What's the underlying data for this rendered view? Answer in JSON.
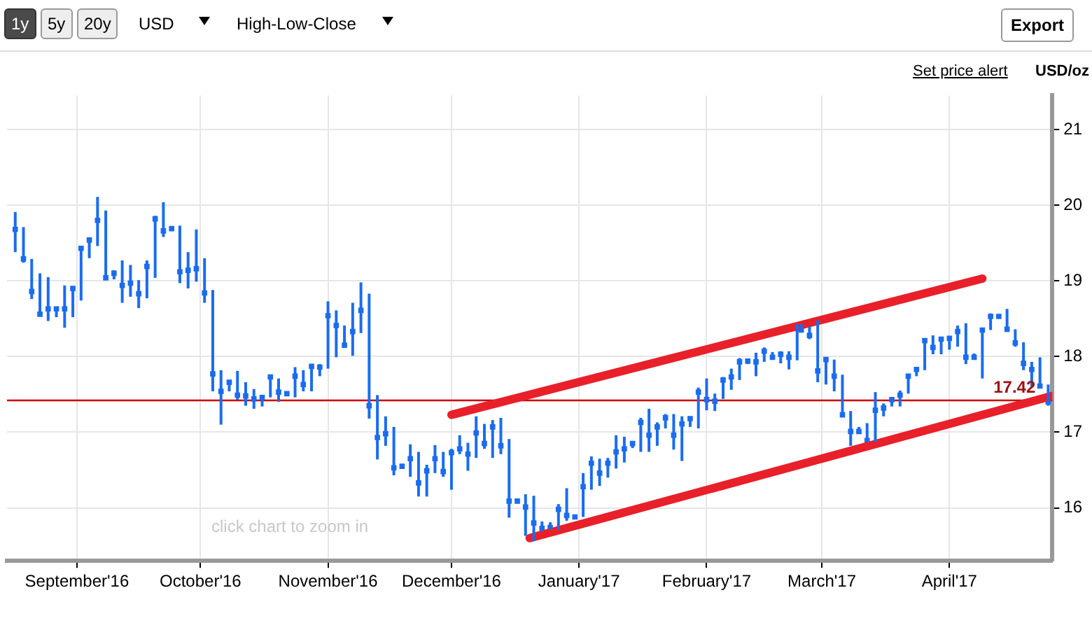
{
  "chart_data": {
    "type": "scatter",
    "ylabel": "USD/oz",
    "annotations": [
      "1y",
      "5y",
      "20y",
      "USD",
      "High-Low-Close",
      "Export",
      "Set price alert",
      "click chart to zoom in"
    ],
    "xlim": [
      "2016-08-15",
      "2017-04-26"
    ],
    "xticks": [
      {
        "value": "2016-09-01",
        "label": "September'16"
      },
      {
        "value": "2016-10-01",
        "label": "October'16"
      },
      {
        "value": "2016-11-01",
        "label": "November'16"
      },
      {
        "value": "2016-12-01",
        "label": "December'16"
      },
      {
        "value": "2017-01-01",
        "label": "January'17"
      },
      {
        "value": "2017-02-01",
        "label": "February'17"
      },
      {
        "value": "2017-03-01",
        "label": "March'17"
      },
      {
        "value": "2017-04-01",
        "label": "April'17"
      }
    ],
    "ylim": [
      15.3,
      21.45
    ],
    "yticks": [
      16,
      17,
      18,
      19,
      20,
      21
    ],
    "grid": true,
    "legend": false,
    "ref_lines": [
      {
        "axis": "y",
        "value": 17.42,
        "label": "17.42",
        "color": "#cc0000"
      }
    ],
    "color": "#1a6cf0",
    "marker": "square",
    "x": [
      "2016-08-17",
      "2016-08-19",
      "2016-08-21",
      "2016-08-23",
      "2016-08-25",
      "2016-08-27",
      "2016-08-29",
      "2016-08-31",
      "2016-09-02",
      "2016-09-04",
      "2016-09-06",
      "2016-09-08",
      "2016-09-10",
      "2016-09-12",
      "2016-09-14",
      "2016-09-16",
      "2016-09-18",
      "2016-09-20",
      "2016-09-22",
      "2016-09-24",
      "2016-09-26",
      "2016-09-28",
      "2016-09-30",
      "2016-10-02",
      "2016-10-04",
      "2016-10-06",
      "2016-10-08",
      "2016-10-10",
      "2016-10-12",
      "2016-10-14",
      "2016-10-16",
      "2016-10-18",
      "2016-10-20",
      "2016-10-22",
      "2016-10-24",
      "2016-10-26",
      "2016-10-28",
      "2016-10-30",
      "2016-11-01",
      "2016-11-03",
      "2016-11-05",
      "2016-11-07",
      "2016-11-09",
      "2016-11-11",
      "2016-11-13",
      "2016-11-15",
      "2016-11-17",
      "2016-11-19",
      "2016-11-21",
      "2016-11-23",
      "2016-11-25",
      "2016-11-27",
      "2016-11-29",
      "2016-12-01",
      "2016-12-03",
      "2016-12-05",
      "2016-12-07",
      "2016-12-09",
      "2016-12-11",
      "2016-12-13",
      "2016-12-15",
      "2016-12-17",
      "2016-12-19",
      "2016-12-21",
      "2016-12-23",
      "2016-12-25",
      "2016-12-27",
      "2016-12-29",
      "2016-12-31",
      "2017-01-02",
      "2017-01-04",
      "2017-01-06",
      "2017-01-08",
      "2017-01-10",
      "2017-01-12",
      "2017-01-14",
      "2017-01-16",
      "2017-01-18",
      "2017-01-20",
      "2017-01-22",
      "2017-01-24",
      "2017-01-26",
      "2017-01-28",
      "2017-01-30",
      "2017-02-01",
      "2017-02-03",
      "2017-02-05",
      "2017-02-07",
      "2017-02-09",
      "2017-02-11",
      "2017-02-13",
      "2017-02-15",
      "2017-02-17",
      "2017-02-19",
      "2017-02-21",
      "2017-02-23",
      "2017-02-24",
      "2017-02-26",
      "2017-02-28",
      "2017-03-02",
      "2017-03-04",
      "2017-03-06",
      "2017-03-08",
      "2017-03-10",
      "2017-03-12",
      "2017-03-14",
      "2017-03-16",
      "2017-03-18",
      "2017-03-20",
      "2017-03-22",
      "2017-03-24",
      "2017-03-26",
      "2017-03-28",
      "2017-03-30",
      "2017-04-01",
      "2017-04-03",
      "2017-04-05",
      "2017-04-07",
      "2017-04-09",
      "2017-04-11",
      "2017-04-13",
      "2017-04-15",
      "2017-04-17",
      "2017-04-19",
      "2017-04-21",
      "2017-04-23",
      "2017-04-25"
    ],
    "values": [
      19.68,
      19.29,
      18.86,
      18.56,
      18.63,
      18.63,
      18.63,
      18.9,
      19.43,
      19.54,
      19.8,
      19.04,
      19.1,
      18.94,
      18.97,
      18.83,
      19.19,
      19.82,
      19.66,
      19.69,
      19.12,
      19.14,
      19.16,
      18.84,
      17.77,
      17.54,
      17.66,
      17.49,
      17.48,
      17.44,
      17.46,
      17.73,
      17.53,
      17.51,
      17.74,
      17.63,
      17.87,
      17.86,
      18.54,
      18.41,
      18.15,
      18.33,
      18.61,
      17.35,
      16.93,
      16.98,
      16.53,
      16.55,
      16.65,
      16.33,
      16.49,
      16.65,
      16.48,
      16.73,
      16.78,
      16.71,
      16.99,
      16.85,
      17.07,
      16.82,
      16.09,
      16.09,
      16.01,
      15.8,
      15.73,
      15.74,
      15.98,
      15.9,
      15.88,
      16.28,
      16.59,
      16.46,
      16.59,
      16.74,
      16.78,
      16.85,
      17.13,
      16.96,
      17.07,
      17.19,
      16.96,
      17.11,
      17.18,
      17.53,
      17.43,
      17.41,
      17.69,
      17.73,
      17.93,
      17.94,
      17.93,
      18.07,
      17.99,
      18.03,
      17.99,
      18.37,
      18.35,
      18.28,
      17.81,
      17.96,
      17.74,
      17.23,
      17.01,
      17.01,
      16.89,
      17.29,
      17.32,
      17.43,
      17.49,
      17.74,
      17.83,
      18.21,
      18.12,
      18.23,
      18.24,
      18.33,
      17.99,
      17.99,
      18.35,
      18.53,
      18.53,
      18.36,
      18.18,
      17.91,
      17.83,
      17.61,
      17.4
    ],
    "errors": [
      [
        19.38,
        19.91
      ],
      [
        19.24,
        19.71
      ],
      [
        18.76,
        19.29
      ],
      [
        18.54,
        19.1
      ],
      [
        18.47,
        19.05
      ],
      [
        18.52,
        18.64
      ],
      [
        18.38,
        18.94
      ],
      [
        18.52,
        18.93
      ],
      [
        18.74,
        19.44
      ],
      [
        19.3,
        19.55
      ],
      [
        19.46,
        20.11
      ],
      [
        19.02,
        19.93
      ],
      [
        19.02,
        19.14
      ],
      [
        18.71,
        19.27
      ],
      [
        18.79,
        19.21
      ],
      [
        18.64,
        19.01
      ],
      [
        18.77,
        19.27
      ],
      [
        19.04,
        19.86
      ],
      [
        19.58,
        20.04
      ],
      [
        19.66,
        19.71
      ],
      [
        18.97,
        19.73
      ],
      [
        18.9,
        19.38
      ],
      [
        18.99,
        19.68
      ],
      [
        18.71,
        19.3
      ],
      [
        17.54,
        18.88
      ],
      [
        17.1,
        17.82
      ],
      [
        17.54,
        17.69
      ],
      [
        17.43,
        17.81
      ],
      [
        17.35,
        17.66
      ],
      [
        17.31,
        17.57
      ],
      [
        17.34,
        17.48
      ],
      [
        17.46,
        17.74
      ],
      [
        17.4,
        17.71
      ],
      [
        17.49,
        17.53
      ],
      [
        17.46,
        17.86
      ],
      [
        17.54,
        17.82
      ],
      [
        17.54,
        17.89
      ],
      [
        17.74,
        17.9
      ],
      [
        17.84,
        18.73
      ],
      [
        17.99,
        18.61
      ],
      [
        18.13,
        18.41
      ],
      [
        18.01,
        18.71
      ],
      [
        18.31,
        18.98
      ],
      [
        17.18,
        18.83
      ],
      [
        16.64,
        17.49
      ],
      [
        16.82,
        17.21
      ],
      [
        16.43,
        17.07
      ],
      [
        16.53,
        16.58
      ],
      [
        16.41,
        16.84
      ],
      [
        16.15,
        16.74
      ],
      [
        16.15,
        16.57
      ],
      [
        16.46,
        16.83
      ],
      [
        16.41,
        16.74
      ],
      [
        16.24,
        16.78
      ],
      [
        16.71,
        16.96
      ],
      [
        16.49,
        16.86
      ],
      [
        16.66,
        17.21
      ],
      [
        16.78,
        17.11
      ],
      [
        16.66,
        17.16
      ],
      [
        16.71,
        17.19
      ],
      [
        15.87,
        16.91
      ],
      [
        16.07,
        16.1
      ],
      [
        15.63,
        16.18
      ],
      [
        15.56,
        16.16
      ],
      [
        15.69,
        15.82
      ],
      [
        15.71,
        15.81
      ],
      [
        15.71,
        16.05
      ],
      [
        15.83,
        16.26
      ],
      [
        15.87,
        15.9
      ],
      [
        15.88,
        16.46
      ],
      [
        16.24,
        16.68
      ],
      [
        16.29,
        16.65
      ],
      [
        16.4,
        16.66
      ],
      [
        16.52,
        16.96
      ],
      [
        16.6,
        16.94
      ],
      [
        16.79,
        16.88
      ],
      [
        16.74,
        17.19
      ],
      [
        16.74,
        17.31
      ],
      [
        16.82,
        17.13
      ],
      [
        17.05,
        17.24
      ],
      [
        16.77,
        17.24
      ],
      [
        16.62,
        17.21
      ],
      [
        17.07,
        17.19
      ],
      [
        17.05,
        17.59
      ],
      [
        17.29,
        17.71
      ],
      [
        17.28,
        17.51
      ],
      [
        17.44,
        17.73
      ],
      [
        17.56,
        17.84
      ],
      [
        17.69,
        17.98
      ],
      [
        17.9,
        17.96
      ],
      [
        17.74,
        18.05
      ],
      [
        17.93,
        18.12
      ],
      [
        17.98,
        18.06
      ],
      [
        17.91,
        18.07
      ],
      [
        17.83,
        18.07
      ],
      [
        17.95,
        18.43
      ],
      [
        18.32,
        18.43
      ],
      [
        18.23,
        18.4
      ],
      [
        17.66,
        18.48
      ],
      [
        17.63,
        17.98
      ],
      [
        17.54,
        17.96
      ],
      [
        17.21,
        17.76
      ],
      [
        16.82,
        17.28
      ],
      [
        16.99,
        17.07
      ],
      [
        16.87,
        17.12
      ],
      [
        16.87,
        17.53
      ],
      [
        17.21,
        17.38
      ],
      [
        17.34,
        17.44
      ],
      [
        17.34,
        17.55
      ],
      [
        17.51,
        17.76
      ],
      [
        17.74,
        17.85
      ],
      [
        17.82,
        18.23
      ],
      [
        18.03,
        18.28
      ],
      [
        18.03,
        18.24
      ],
      [
        18.09,
        18.26
      ],
      [
        18.13,
        18.41
      ],
      [
        17.9,
        18.44
      ],
      [
        17.98,
        18.04
      ],
      [
        17.71,
        18.36
      ],
      [
        18.35,
        18.57
      ],
      [
        18.51,
        18.54
      ],
      [
        18.35,
        18.63
      ],
      [
        18.13,
        18.36
      ],
      [
        17.82,
        18.19
      ],
      [
        17.6,
        17.93
      ],
      [
        17.59,
        17.99
      ],
      [
        17.35,
        17.63
      ]
    ],
    "series": [
      {
        "type": "line",
        "marker": "none",
        "color": "#e8202a",
        "x": [
          "2016-12-01",
          "2017-04-09"
        ],
        "values": [
          17.23,
          19.03
        ]
      },
      {
        "type": "line",
        "marker": "none",
        "color": "#e8202a",
        "x": [
          "2016-12-20",
          "2017-04-26"
        ],
        "values": [
          15.6,
          17.48
        ]
      }
    ]
  }
}
